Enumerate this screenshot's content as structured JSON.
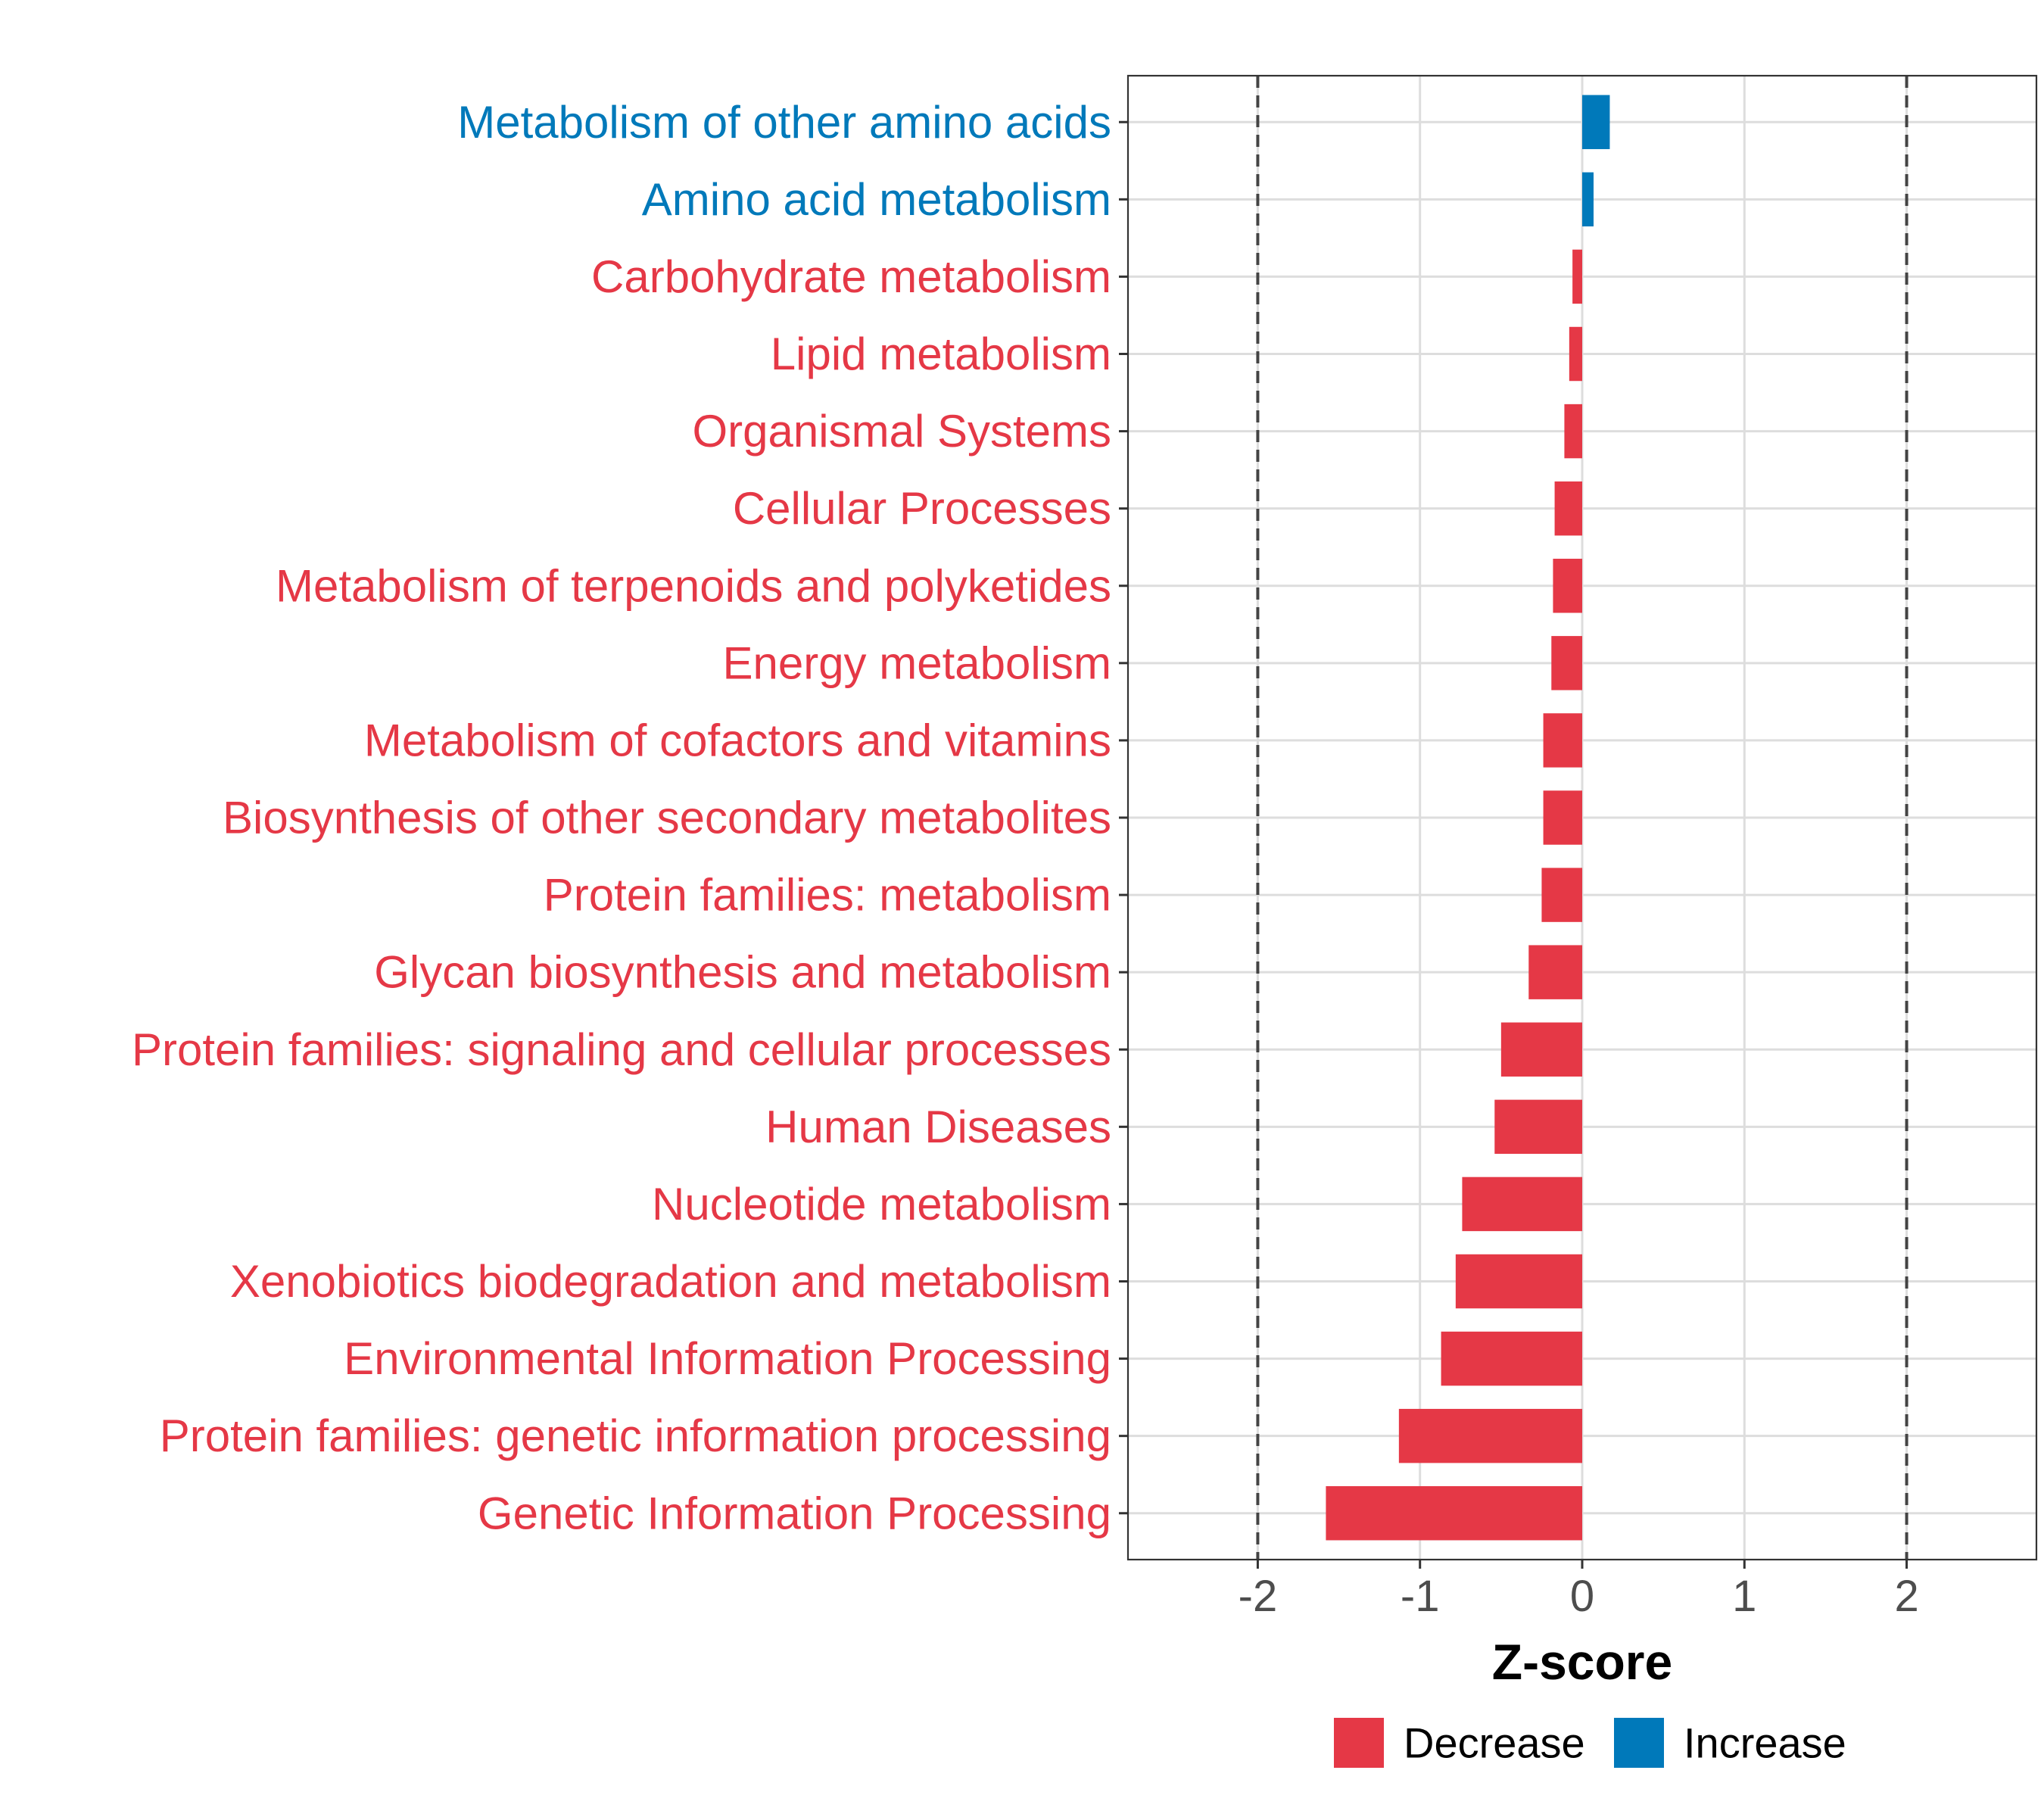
{
  "chart_data": {
    "type": "bar",
    "orientation": "horizontal",
    "title": "",
    "xlabel": "Z-score",
    "ylabel": "",
    "xlim": [
      -2.8,
      2.8
    ],
    "xticks": [
      -2,
      -1,
      0,
      1,
      2
    ],
    "xtick_labels": [
      "-2",
      "-1",
      "0",
      "1",
      "2"
    ],
    "reference_lines": [
      -2,
      2
    ],
    "grid": true,
    "legend_position": "bottom",
    "legend": [
      {
        "label": "Decrease",
        "color": "#E53846"
      },
      {
        "label": "Increase",
        "color": "#0079BA"
      }
    ],
    "categories": [
      "Metabolism of other amino acids",
      "Amino acid metabolism",
      "Carbohydrate metabolism",
      "Lipid metabolism",
      "Organismal Systems",
      "Cellular Processes",
      "Metabolism of terpenoids and polyketides",
      "Energy metabolism",
      "Metabolism of cofactors and vitamins",
      "Biosynthesis of other secondary metabolites",
      "Protein families: metabolism",
      "Glycan biosynthesis and metabolism",
      "Protein families: signaling and cellular processes",
      "Human Diseases",
      "Nucleotide metabolism",
      "Xenobiotics biodegradation and metabolism",
      "Environmental Information Processing",
      "Protein families: genetic information processing",
      "Genetic Information Processing"
    ],
    "values": [
      0.17,
      0.07,
      -0.06,
      -0.08,
      -0.11,
      -0.17,
      -0.18,
      -0.19,
      -0.24,
      -0.24,
      -0.25,
      -0.33,
      -0.5,
      -0.54,
      -0.74,
      -0.78,
      -0.87,
      -1.13,
      -1.58
    ],
    "direction": [
      "Increase",
      "Increase",
      "Decrease",
      "Decrease",
      "Decrease",
      "Decrease",
      "Decrease",
      "Decrease",
      "Decrease",
      "Decrease",
      "Decrease",
      "Decrease",
      "Decrease",
      "Decrease",
      "Decrease",
      "Decrease",
      "Decrease",
      "Decrease",
      "Decrease"
    ]
  }
}
